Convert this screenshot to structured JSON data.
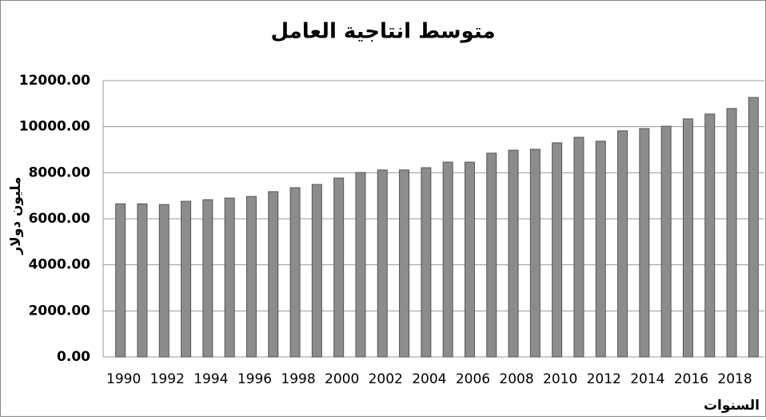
{
  "chart_data": {
    "type": "bar",
    "title": "متوسط انتاجية العامل",
    "y_label": "مليون دولار",
    "x_label": "السنوات",
    "categories": [
      "1990",
      null,
      "1992",
      null,
      "1994",
      null,
      "1996",
      null,
      "1998",
      null,
      "2000",
      null,
      "2002",
      null,
      "2004",
      null,
      "2006",
      null,
      "2008",
      null,
      "2010",
      null,
      "2012",
      null,
      "2014",
      null,
      "2016",
      null,
      "2018",
      null
    ],
    "values": [
      6650,
      6650,
      6620,
      6760,
      6830,
      6900,
      6970,
      7180,
      7350,
      7490,
      7770,
      8010,
      8120,
      8120,
      8220,
      8460,
      8460,
      8850,
      8980,
      9020,
      9300,
      9540,
      9370,
      9820,
      9920,
      10020,
      10340,
      10550,
      10790,
      11270
    ],
    "color": "#8c8c8c",
    "ylim": [
      0,
      12000
    ],
    "yticks": [
      {
        "value": 0,
        "label": "0.00"
      },
      {
        "value": 2000,
        "label": "2000.00"
      },
      {
        "value": 4000,
        "label": "4000.00"
      },
      {
        "value": 6000,
        "label": "6000.00"
      },
      {
        "value": 8000,
        "label": "8000.00"
      },
      {
        "value": 10000,
        "label": "10000.00"
      },
      {
        "value": 12000,
        "label": "12000.00"
      }
    ],
    "grid": true
  }
}
